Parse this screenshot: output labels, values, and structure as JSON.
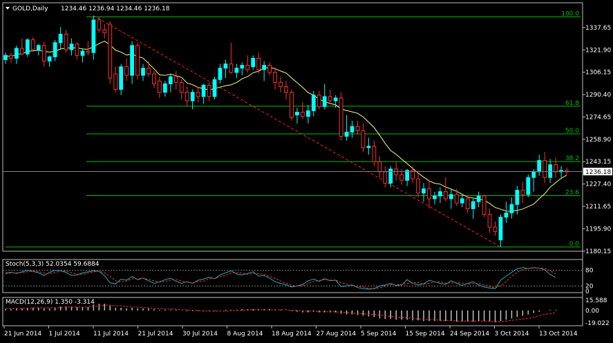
{
  "header": {
    "symbol": "GOLD,Daily",
    "ohlc": "1234.46 1236.94 1234.46 1236.18",
    "menu_icon": "triangle-down-icon"
  },
  "colors": {
    "background": "#000000",
    "axis": "#c0c0c0",
    "text": "#ffffff",
    "bull": "#00ffff",
    "bear": "#ff3030",
    "ma": "#ffff80",
    "fib": "#00c000",
    "trend": "#ff2020",
    "stoch_main": "#20b0c0",
    "stoch_signal": "#ff3030",
    "macd_hist": "#c0c0c0",
    "macd_signal": "#ff3030",
    "last_price_bg": "#ffffff"
  },
  "chart_data": {
    "type": "candlestick",
    "symbol": "GOLD",
    "timeframe": "Daily",
    "ylim": [
      1180.05,
      1353.15
    ],
    "y_ticks": [
      "1337.65",
      "1321.90",
      "1306.15",
      "1290.40",
      "1274.65",
      "1258.90",
      "1243.15",
      "1227.40",
      "1211.65",
      "1195.90",
      "1180.15"
    ],
    "last_price": "1236.18",
    "x_tick_labels": [
      "21 Jun 2014",
      "1 Jul 2014",
      "11 Jul 2014",
      "21 Jul 2014",
      "30 Jul 2014",
      "8 Aug 2014",
      "18 Aug 2014",
      "27 Aug 2014",
      "5 Sep 2014",
      "15 Sep 2014",
      "24 Sep 2014",
      "3 Oct 2014",
      "13 Oct 2014"
    ],
    "fib_levels": [
      {
        "label": "100.0",
        "price": 1345.2
      },
      {
        "label": "61.8",
        "price": 1282.2
      },
      {
        "label": "50.0",
        "price": 1262.7
      },
      {
        "label": "38.2",
        "price": 1243.2
      },
      {
        "label": "23.6",
        "price": 1219.2
      },
      {
        "label": "0.0",
        "price": 1183.0
      }
    ],
    "ohlc": [
      [
        1315,
        1320,
        1312,
        1318
      ],
      [
        1318,
        1320,
        1313,
        1316
      ],
      [
        1316,
        1325,
        1312,
        1323
      ],
      [
        1323,
        1330,
        1318,
        1319
      ],
      [
        1319,
        1330,
        1317,
        1329
      ],
      [
        1329,
        1331,
        1321,
        1322
      ],
      [
        1322,
        1326,
        1318,
        1325
      ],
      [
        1325,
        1328,
        1310,
        1314
      ],
      [
        1314,
        1318,
        1310,
        1317
      ],
      [
        1317,
        1329,
        1314,
        1327
      ],
      [
        1327,
        1338,
        1322,
        1333
      ],
      [
        1333,
        1336,
        1320,
        1322
      ],
      [
        1322,
        1330,
        1318,
        1326
      ],
      [
        1326,
        1327,
        1315,
        1318
      ],
      [
        1318,
        1323,
        1313,
        1321
      ],
      [
        1321,
        1328,
        1318,
        1320
      ],
      [
        1320,
        1346,
        1315,
        1343
      ],
      [
        1343,
        1345,
        1334,
        1336
      ],
      [
        1336,
        1340,
        1330,
        1334
      ],
      [
        1340,
        1342,
        1298,
        1302
      ],
      [
        1305,
        1310,
        1292,
        1294
      ],
      [
        1294,
        1312,
        1290,
        1310
      ],
      [
        1310,
        1316,
        1300,
        1304
      ],
      [
        1304,
        1328,
        1298,
        1325
      ],
      [
        1325,
        1327,
        1301,
        1304
      ],
      [
        1304,
        1312,
        1300,
        1309
      ],
      [
        1309,
        1314,
        1303,
        1305
      ],
      [
        1305,
        1307,
        1295,
        1298
      ],
      [
        1300,
        1303,
        1288,
        1292
      ],
      [
        1292,
        1300,
        1289,
        1298
      ],
      [
        1298,
        1305,
        1292,
        1303
      ],
      [
        1303,
        1307,
        1294,
        1299
      ],
      [
        1299,
        1301,
        1287,
        1292
      ],
      [
        1292,
        1296,
        1282,
        1286
      ],
      [
        1286,
        1294,
        1280,
        1292
      ],
      [
        1292,
        1296,
        1285,
        1289
      ],
      [
        1289,
        1298,
        1284,
        1297
      ],
      [
        1297,
        1299,
        1286,
        1289
      ],
      [
        1289,
        1303,
        1287,
        1301
      ],
      [
        1301,
        1312,
        1298,
        1309
      ],
      [
        1309,
        1315,
        1302,
        1312
      ],
      [
        1312,
        1327,
        1305,
        1306
      ],
      [
        1306,
        1312,
        1302,
        1309
      ],
      [
        1309,
        1313,
        1304,
        1311
      ],
      [
        1311,
        1318,
        1306,
        1308
      ],
      [
        1310,
        1318,
        1308,
        1316
      ],
      [
        1316,
        1320,
        1305,
        1308
      ],
      [
        1308,
        1314,
        1300,
        1311
      ],
      [
        1311,
        1313,
        1304,
        1306
      ],
      [
        1306,
        1309,
        1294,
        1299
      ],
      [
        1299,
        1303,
        1292,
        1296
      ],
      [
        1296,
        1300,
        1287,
        1292
      ],
      [
        1292,
        1294,
        1272,
        1274
      ],
      [
        1276,
        1281,
        1270,
        1278
      ],
      [
        1278,
        1285,
        1273,
        1275
      ],
      [
        1275,
        1283,
        1270,
        1279
      ],
      [
        1279,
        1293,
        1275,
        1290
      ],
      [
        1290,
        1293,
        1280,
        1282
      ],
      [
        1282,
        1298,
        1280,
        1289
      ],
      [
        1289,
        1294,
        1284,
        1286
      ],
      [
        1286,
        1290,
        1281,
        1288
      ],
      [
        1288,
        1292,
        1258,
        1261
      ],
      [
        1261,
        1276,
        1258,
        1264
      ],
      [
        1264,
        1272,
        1260,
        1268
      ],
      [
        1268,
        1272,
        1262,
        1265
      ],
      [
        1265,
        1270,
        1250,
        1253
      ],
      [
        1253,
        1260,
        1248,
        1254
      ],
      [
        1254,
        1258,
        1240,
        1243
      ],
      [
        1243,
        1247,
        1232,
        1236
      ],
      [
        1236,
        1240,
        1225,
        1228
      ],
      [
        1228,
        1240,
        1225,
        1238
      ],
      [
        1238,
        1243,
        1230,
        1234
      ],
      [
        1234,
        1238,
        1227,
        1230
      ],
      [
        1230,
        1238,
        1226,
        1237
      ],
      [
        1237,
        1240,
        1228,
        1231
      ],
      [
        1231,
        1235,
        1218,
        1221
      ],
      [
        1221,
        1228,
        1215,
        1224
      ],
      [
        1224,
        1230,
        1210,
        1217
      ],
      [
        1217,
        1222,
        1213,
        1219
      ],
      [
        1219,
        1225,
        1214,
        1222
      ],
      [
        1222,
        1232,
        1215,
        1217
      ],
      [
        1217,
        1224,
        1210,
        1220
      ],
      [
        1220,
        1224,
        1212,
        1214
      ],
      [
        1214,
        1220,
        1211,
        1217
      ],
      [
        1217,
        1219,
        1207,
        1210
      ],
      [
        1210,
        1217,
        1203,
        1215
      ],
      [
        1215,
        1222,
        1211,
        1219
      ],
      [
        1219,
        1220,
        1204,
        1206
      ],
      [
        1206,
        1210,
        1193,
        1197
      ],
      [
        1197,
        1201,
        1191,
        1194
      ],
      [
        1188,
        1206,
        1183,
        1204
      ],
      [
        1204,
        1215,
        1200,
        1207
      ],
      [
        1207,
        1218,
        1203,
        1213
      ],
      [
        1213,
        1226,
        1206,
        1223
      ],
      [
        1223,
        1229,
        1214,
        1220
      ],
      [
        1220,
        1234,
        1218,
        1232
      ],
      [
        1232,
        1238,
        1222,
        1236
      ],
      [
        1236,
        1248,
        1233,
        1244
      ],
      [
        1244,
        1250,
        1228,
        1232
      ],
      [
        1232,
        1245,
        1228,
        1241
      ],
      [
        1241,
        1246,
        1232,
        1236
      ],
      [
        1236,
        1240,
        1232,
        1237
      ],
      [
        1237,
        1239,
        1234,
        1236
      ]
    ],
    "ma_label": "",
    "trendline": {
      "from_index": 16,
      "from_price": 1346,
      "to_index": 90,
      "to_price": 1183
    },
    "stochastic": {
      "label": "Stoch(5,3,3) 52.0354 59.6884",
      "ylim": [
        0,
        100
      ],
      "levels": [
        "80",
        "20",
        "0"
      ],
      "main": [
        70,
        72,
        68,
        74,
        80,
        76,
        70,
        60,
        72,
        80,
        78,
        72,
        60,
        62,
        70,
        74,
        78,
        76,
        60,
        32,
        28,
        46,
        42,
        56,
        44,
        50,
        40,
        30,
        36,
        44,
        50,
        38,
        30,
        36,
        30,
        42,
        46,
        54,
        48,
        62,
        70,
        78,
        66,
        62,
        68,
        74,
        58,
        60,
        50,
        36,
        30,
        24,
        16,
        20,
        26,
        40,
        46,
        38,
        48,
        40,
        42,
        18,
        20,
        24,
        14,
        10,
        8,
        10,
        20,
        24,
        30,
        22,
        24,
        44,
        30,
        24,
        28,
        42,
        36,
        30,
        26,
        40,
        30,
        22,
        30,
        36,
        24,
        16,
        12,
        10,
        42,
        58,
        72,
        86,
        90,
        86,
        90,
        88,
        82,
        64,
        52
      ],
      "signal": [
        66,
        70,
        70,
        71,
        74,
        77,
        75,
        69,
        67,
        71,
        77,
        77,
        70,
        65,
        64,
        69,
        74,
        76,
        71,
        56,
        40,
        35,
        39,
        48,
        47,
        50,
        45,
        40,
        35,
        37,
        43,
        44,
        39,
        35,
        32,
        36,
        39,
        47,
        49,
        55,
        60,
        70,
        71,
        69,
        65,
        68,
        67,
        64,
        56,
        49,
        39,
        30,
        23,
        20,
        21,
        29,
        37,
        41,
        44,
        42,
        43,
        33,
        27,
        21,
        19,
        16,
        11,
        9,
        13,
        18,
        25,
        25,
        25,
        30,
        33,
        33,
        27,
        31,
        35,
        36,
        31,
        32,
        32,
        31,
        27,
        29,
        30,
        25,
        17,
        13,
        21,
        37,
        57,
        72,
        83,
        87,
        89,
        88,
        87,
        78,
        66
      ]
    },
    "macd": {
      "label": "MACD(12,26,9) 1.350 -3.314",
      "ylim": [
        -21,
        17.5
      ],
      "y_ticks": [
        "15.588",
        "0.00",
        "-19.022"
      ],
      "hist": [
        2,
        2,
        3,
        3,
        4,
        4,
        4,
        3,
        3,
        4,
        6,
        6,
        6,
        5,
        5,
        5,
        9,
        10,
        10,
        7,
        4,
        4,
        3,
        4,
        3,
        3,
        3,
        2,
        1,
        1,
        1,
        1,
        0,
        -1,
        -1,
        -1,
        -1,
        -1,
        -1,
        0,
        1,
        1,
        1,
        2,
        2,
        2,
        2,
        2,
        2,
        1,
        1,
        0,
        -1,
        -2,
        -3,
        -3,
        -2,
        -3,
        -3,
        -3,
        -3,
        -5,
        -6,
        -6,
        -7,
        -8,
        -9,
        -10,
        -12,
        -13,
        -13,
        -14,
        -14,
        -14,
        -15,
        -15,
        -16,
        -16,
        -16,
        -16,
        -16,
        -16,
        -17,
        -17,
        -17,
        -17,
        -16,
        -16,
        -17,
        -18,
        -16,
        -14,
        -12,
        -10,
        -8,
        -6,
        -4,
        -2,
        0,
        1,
        1
      ],
      "signal": [
        3,
        3,
        3,
        3,
        3,
        4,
        4,
        4,
        4,
        4,
        4,
        5,
        5,
        5,
        5,
        5,
        6,
        7,
        8,
        8,
        7,
        7,
        6,
        5,
        5,
        4,
        4,
        3,
        3,
        2,
        2,
        2,
        1,
        1,
        0,
        0,
        -1,
        -1,
        -1,
        -1,
        -1,
        0,
        0,
        0,
        1,
        1,
        1,
        1,
        1,
        1,
        1,
        1,
        0,
        0,
        -1,
        -1,
        -1,
        -2,
        -2,
        -2,
        -2,
        -3,
        -3,
        -4,
        -4,
        -5,
        -6,
        -6,
        -7,
        -8,
        -9,
        -10,
        -11,
        -11,
        -12,
        -13,
        -13,
        -14,
        -14,
        -15,
        -15,
        -15,
        -16,
        -16,
        -16,
        -16,
        -16,
        -16,
        -16,
        -17,
        -17,
        -16,
        -15,
        -14,
        -13,
        -12,
        -10,
        -8,
        -6,
        -5,
        -3
      ]
    }
  }
}
